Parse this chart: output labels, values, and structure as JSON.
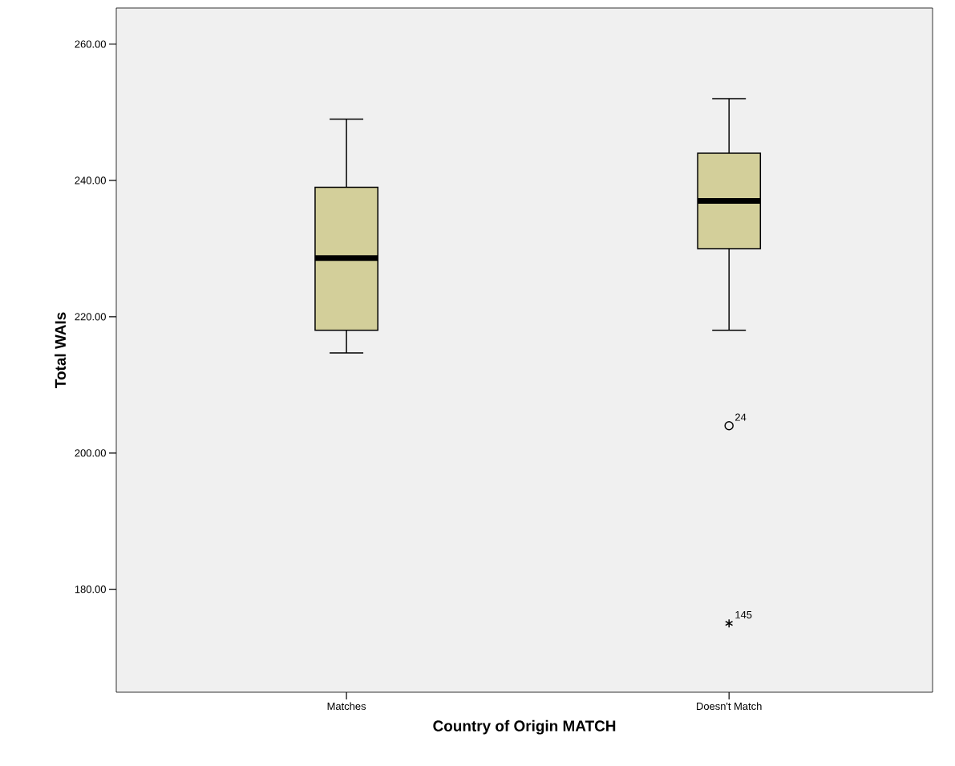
{
  "chart_data": {
    "type": "box",
    "xlabel": "Country of Origin MATCH",
    "ylabel": "Total WAIs",
    "categories": [
      "Matches",
      "Doesn't Match"
    ],
    "color": "#d3cf9a",
    "boxes": [
      {
        "low": 214.7,
        "q1": 218,
        "median": 228.6,
        "q3": 239,
        "high": 249
      },
      {
        "low": 218,
        "q1": 230,
        "median": 237,
        "q3": 244,
        "high": 252,
        "outliers": [
          204,
          175
        ]
      }
    ],
    "annotations": [
      "24",
      "145"
    ],
    "ylim": [
      164.9,
      265.3
    ],
    "yticks": [
      {
        "value": 180,
        "label": "180.00"
      },
      {
        "value": 200,
        "label": "200.00"
      },
      {
        "value": 220,
        "label": "220.00"
      },
      {
        "value": 240,
        "label": "240.00"
      },
      {
        "value": 260,
        "label": "260.00"
      }
    ]
  }
}
